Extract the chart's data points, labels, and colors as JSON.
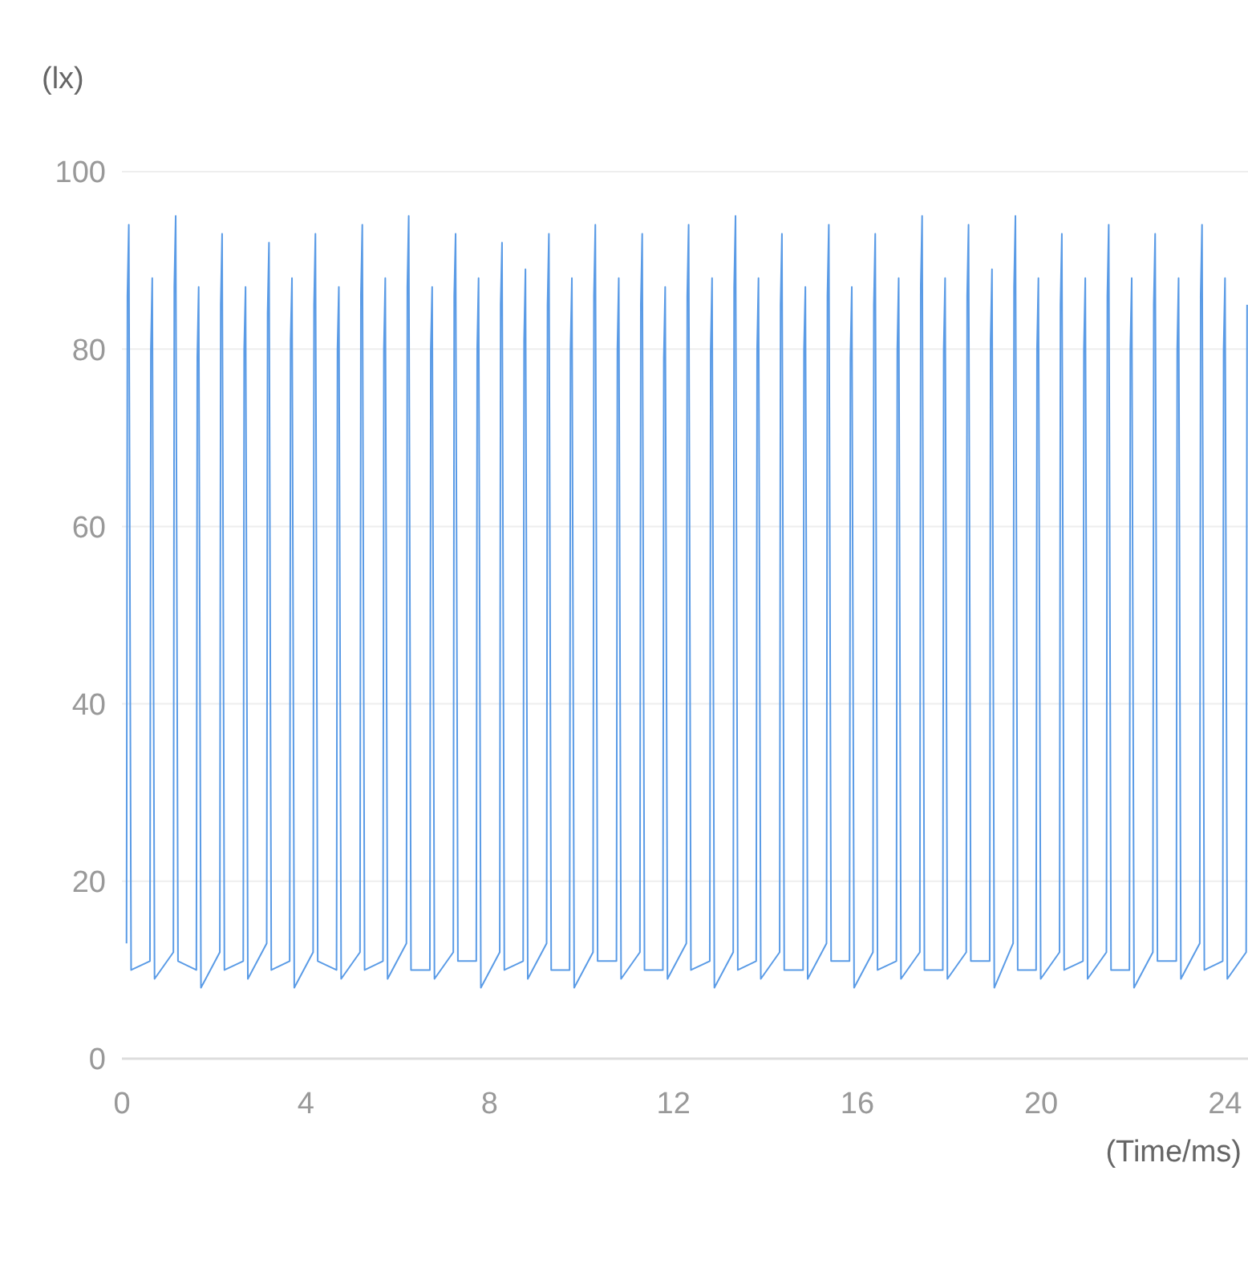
{
  "chart_data": {
    "type": "line",
    "ylabel": "(lx)",
    "xlabel": "(Time/ms)",
    "xlim": [
      0,
      24.5
    ],
    "xticks": [
      0,
      4,
      8,
      12,
      16,
      20,
      24
    ],
    "ylim": [
      0,
      100
    ],
    "yticks": [
      0,
      20,
      40,
      60,
      80,
      100
    ],
    "grid": "y",
    "series": [
      {
        "color": "#5a9be6",
        "x": [
          0.1,
          0.12,
          0.15,
          0.2,
          0.61,
          0.63,
          0.66,
          0.71,
          1.12,
          1.14,
          1.17,
          1.22,
          1.62,
          1.64,
          1.67,
          1.72,
          2.13,
          2.15,
          2.18,
          2.23,
          2.64,
          2.66,
          2.69,
          2.74,
          3.15,
          3.17,
          3.2,
          3.25,
          3.65,
          3.67,
          3.7,
          3.75,
          4.16,
          4.18,
          4.21,
          4.26,
          4.67,
          4.69,
          4.72,
          4.77,
          5.18,
          5.2,
          5.23,
          5.28,
          5.68,
          5.7,
          5.73,
          5.78,
          6.19,
          6.21,
          6.24,
          6.29,
          6.7,
          6.72,
          6.75,
          6.8,
          7.21,
          7.23,
          7.26,
          7.31,
          7.71,
          7.73,
          7.76,
          7.81,
          8.22,
          8.24,
          8.27,
          8.32,
          8.73,
          8.75,
          8.78,
          8.83,
          9.24,
          9.26,
          9.29,
          9.34,
          9.74,
          9.76,
          9.79,
          9.84,
          10.25,
          10.27,
          10.3,
          10.35,
          10.76,
          10.78,
          10.81,
          10.86,
          11.27,
          11.29,
          11.32,
          11.37,
          11.77,
          11.79,
          11.82,
          11.87,
          12.28,
          12.3,
          12.33,
          12.38,
          12.79,
          12.81,
          12.84,
          12.89,
          13.3,
          13.32,
          13.35,
          13.4,
          13.8,
          13.82,
          13.85,
          13.9,
          14.31,
          14.33,
          14.36,
          14.41,
          14.82,
          14.84,
          14.87,
          14.92,
          15.33,
          15.35,
          15.38,
          15.43,
          15.83,
          15.85,
          15.88,
          15.93,
          16.34,
          16.36,
          16.39,
          16.44,
          16.85,
          16.87,
          16.9,
          16.95,
          17.36,
          17.38,
          17.41,
          17.46,
          17.86,
          17.88,
          17.91,
          17.96,
          18.37,
          18.39,
          18.42,
          18.47,
          18.88,
          18.9,
          18.93,
          18.98,
          19.39,
          19.41,
          19.44,
          19.49,
          19.89,
          19.91,
          19.94,
          19.99,
          20.4,
          20.42,
          20.45,
          20.5,
          20.91,
          20.93,
          20.96,
          21.01,
          21.42,
          21.44,
          21.47,
          21.52,
          21.92,
          21.94,
          21.97,
          22.02,
          22.43,
          22.45,
          22.48,
          22.53,
          22.94,
          22.96,
          22.99,
          23.04,
          23.45,
          23.47,
          23.5,
          23.55,
          23.95,
          23.97,
          24.0,
          24.05,
          24.46,
          24.48
        ],
        "values": [
          13,
          86,
          94,
          10,
          11,
          80,
          88,
          9,
          12,
          87,
          95,
          11,
          10,
          79,
          87,
          8,
          12,
          85,
          93,
          10,
          11,
          80,
          87,
          9,
          13,
          84,
          92,
          10,
          11,
          81,
          88,
          8,
          12,
          85,
          93,
          11,
          10,
          80,
          87,
          9,
          12,
          86,
          94,
          10,
          11,
          80,
          88,
          9,
          13,
          87,
          95,
          10,
          10,
          80,
          87,
          9,
          12,
          86,
          93,
          11,
          11,
          80,
          88,
          8,
          12,
          85,
          92,
          10,
          11,
          81,
          89,
          9,
          13,
          85,
          93,
          10,
          10,
          80,
          88,
          8,
          12,
          86,
          94,
          11,
          11,
          80,
          88,
          9,
          12,
          85,
          93,
          10,
          10,
          79,
          87,
          9,
          13,
          86,
          94,
          10,
          11,
          80,
          88,
          8,
          12,
          87,
          95,
          10,
          11,
          80,
          88,
          9,
          12,
          85,
          93,
          10,
          10,
          80,
          87,
          9,
          13,
          86,
          94,
          11,
          11,
          79,
          87,
          8,
          12,
          85,
          93,
          10,
          11,
          80,
          88,
          9,
          12,
          87,
          95,
          10,
          10,
          80,
          88,
          9,
          12,
          86,
          94,
          11,
          11,
          81,
          89,
          8,
          13,
          87,
          95,
          10,
          10,
          80,
          88,
          9,
          12,
          85,
          93,
          10,
          11,
          80,
          88,
          9,
          12,
          86,
          94,
          10,
          10,
          80,
          88,
          8,
          12,
          85,
          93,
          11,
          11,
          80,
          88,
          9,
          13,
          86,
          94,
          10,
          11,
          80,
          88,
          9,
          12,
          85
        ]
      }
    ]
  }
}
